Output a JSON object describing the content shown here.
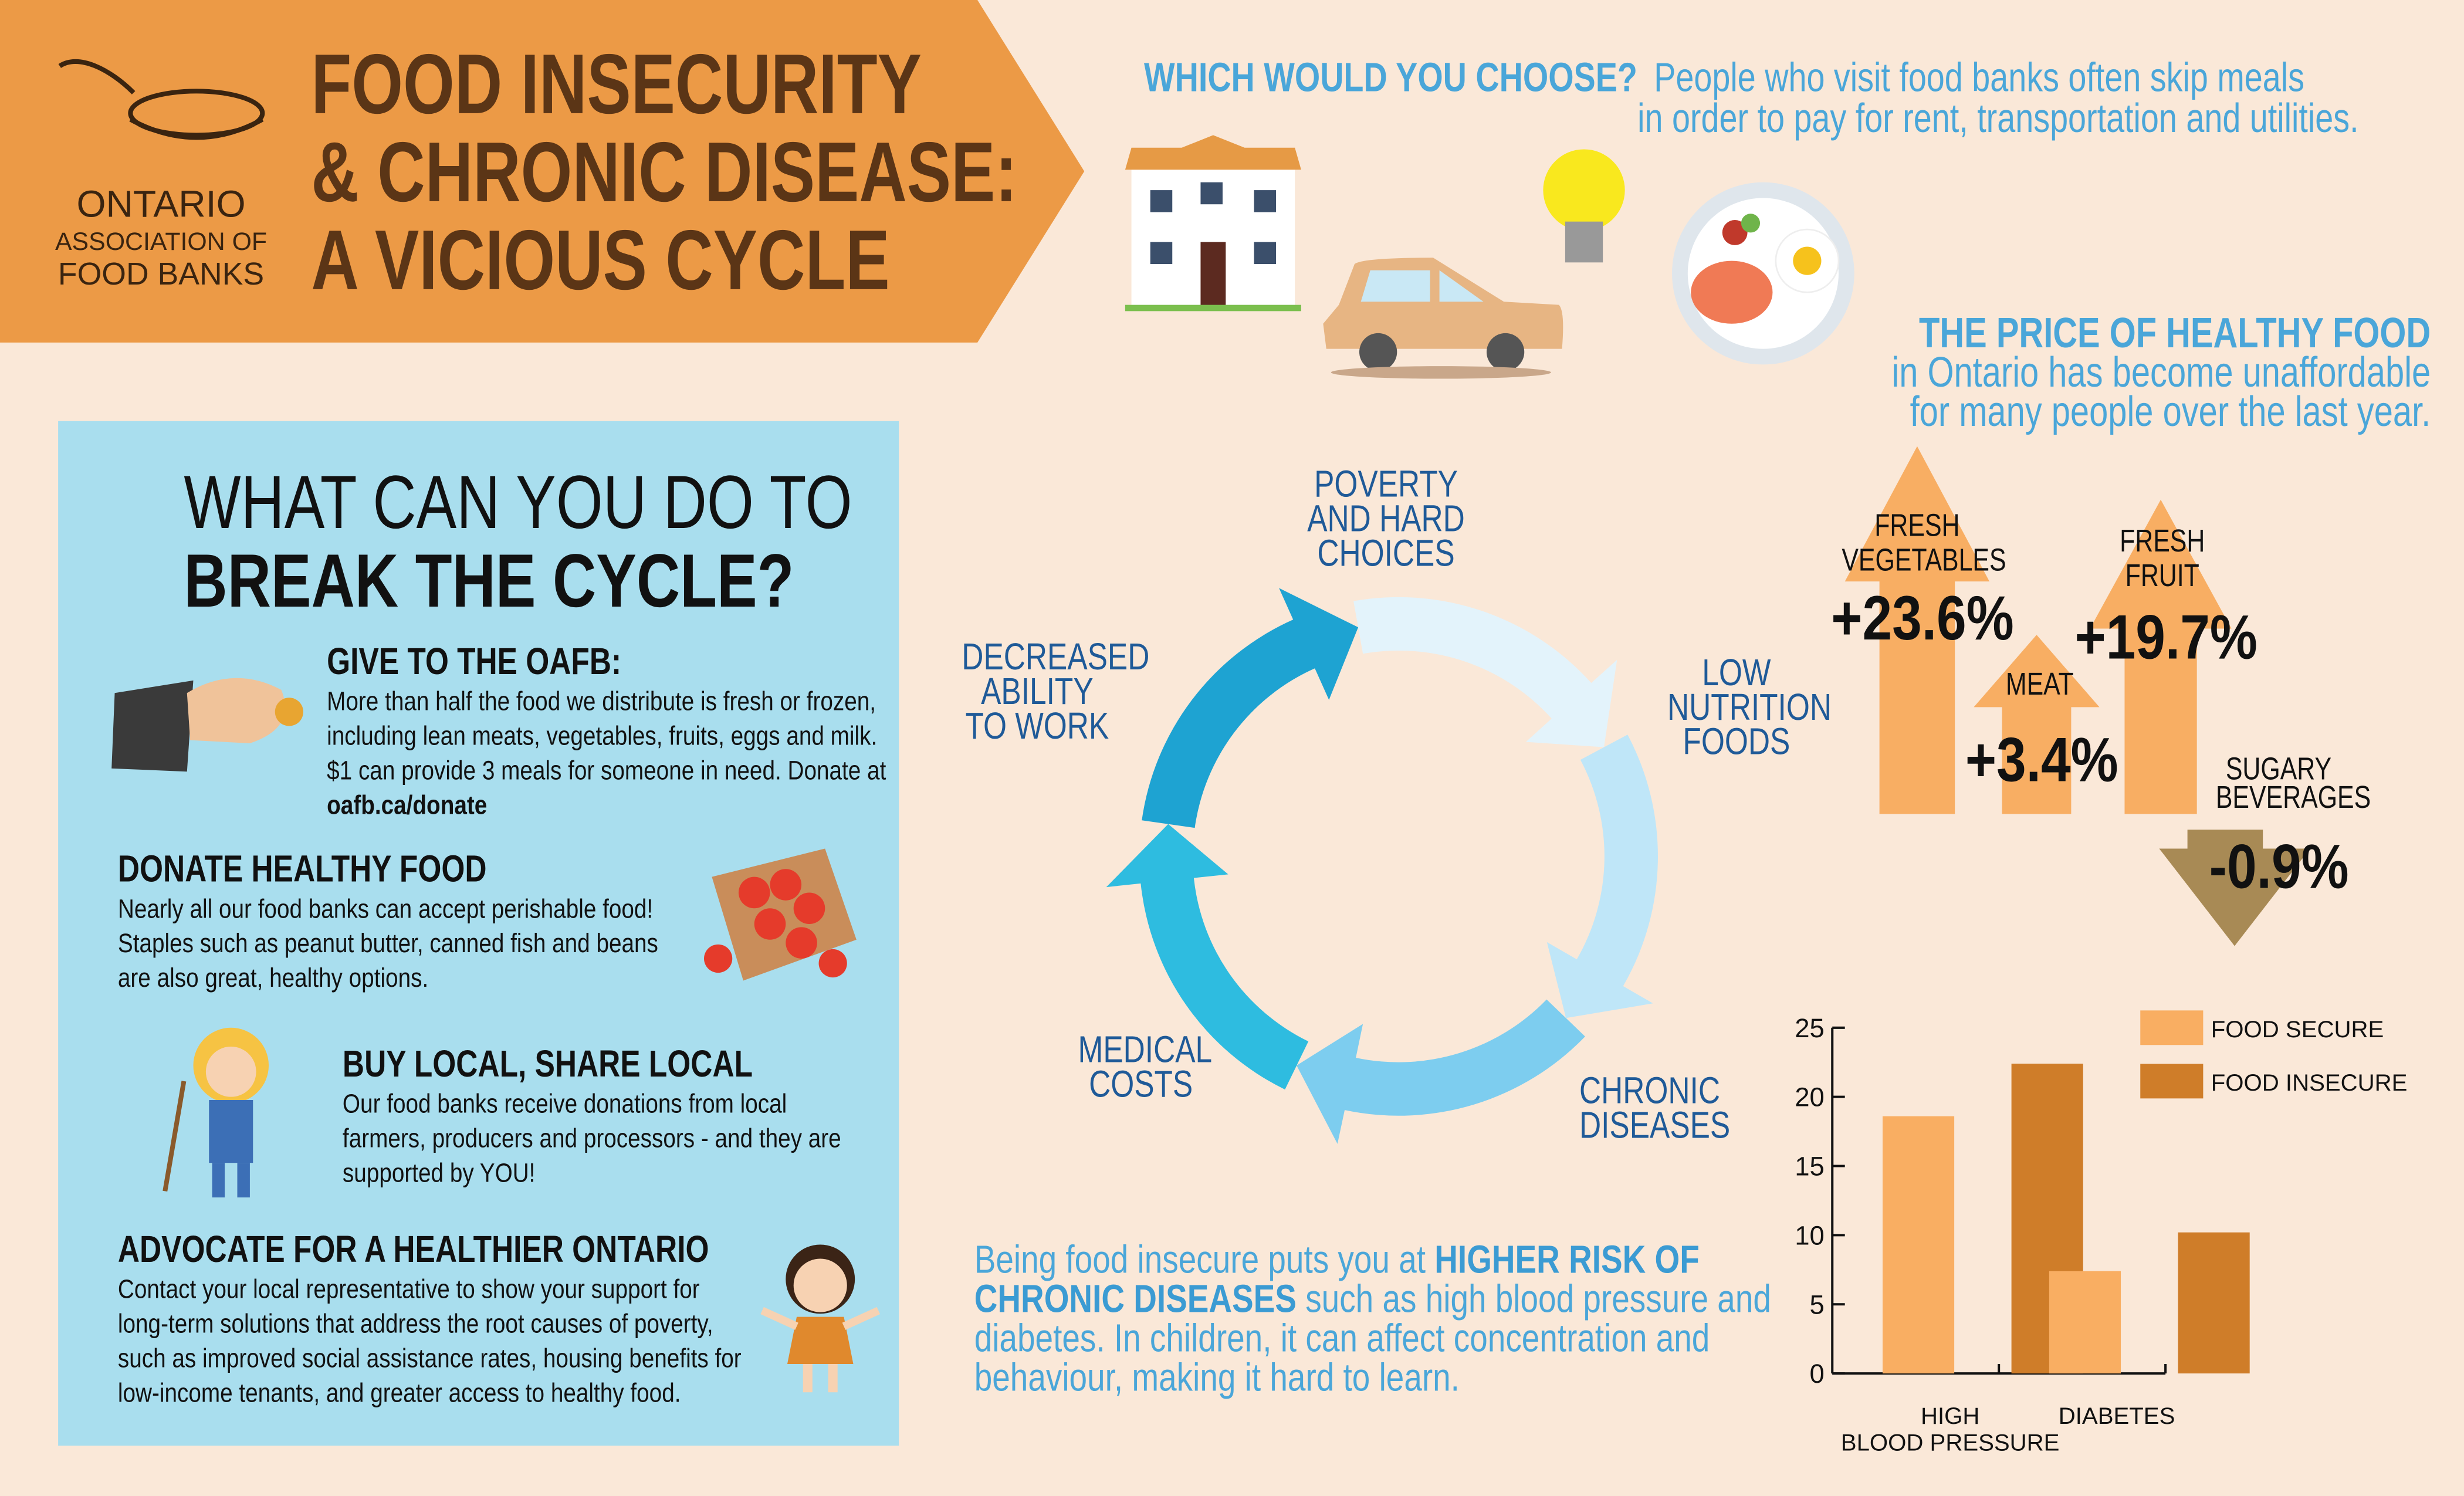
{
  "header": {
    "logo_lines": [
      "ONTARIO",
      "ASSOCIATION OF",
      "FOOD BANKS"
    ],
    "title_lines": [
      "FOOD INSECURITY",
      "& CHRONIC DISEASE:",
      "A VICIOUS CYCLE"
    ],
    "banner_color": "#ec9a46"
  },
  "choose": {
    "heading": "WHICH WOULD YOU CHOOSE?",
    "text_line1": "People who visit food banks often skip meals",
    "text_line2": "in order to pay for rent, transportation and utilities.",
    "icons": [
      "house-icon",
      "car-icon",
      "lightbulb-icon",
      "food-plate-icon"
    ]
  },
  "action_panel": {
    "title_line1": "WHAT CAN YOU DO TO",
    "title_line2": "BREAK THE CYCLE?",
    "items": [
      {
        "heading": "GIVE TO THE OAFB:",
        "text": "More than half the food we distribute is fresh or frozen, including lean meats, vegetables, fruits, eggs and milk.  $1 can provide 3 meals for someone in need. Donate at ",
        "link": "oafb.ca/donate",
        "icon": "hand-coin-icon"
      },
      {
        "heading": "DONATE HEALTHY FOOD",
        "text": "Nearly all our food banks can accept perishable food! Staples such as peanut butter, canned fish and beans are also great, healthy options.",
        "icon": "tomato-crate-icon"
      },
      {
        "heading": "BUY LOCAL, SHARE LOCAL",
        "text": "Our food banks receive donations from local farmers, producers and processors - and they are supported by YOU!",
        "icon": "farmer-icon"
      },
      {
        "heading": "ADVOCATE FOR A HEALTHIER ONTARIO",
        "text": "Contact your local representative to show your support for long-term solutions that address the root causes of poverty, such as improved social assistance rates, housing benefits for low-income tenants, and greater access to healthy food.",
        "icon": "child-icon"
      }
    ]
  },
  "cycle": {
    "stages": [
      {
        "line1": "POVERTY",
        "line2": "AND HARD CHOICES"
      },
      {
        "line1": "LOW",
        "line2": "NUTRITION",
        "line3": "FOODS"
      },
      {
        "line1": "CHRONIC",
        "line2": "DISEASES"
      },
      {
        "line1": "MEDICAL",
        "line2": "COSTS"
      },
      {
        "line1": "DECREASED",
        "line2": "ABILITY",
        "line3": "TO WORK"
      }
    ],
    "colors": [
      "#e3f3fb",
      "#bfe6f8",
      "#7dcdef",
      "#2ebce0",
      "#1ea3d2"
    ]
  },
  "risk_text": {
    "part1": "Being food insecure puts you at ",
    "bold": "HIGHER RISK OF CHRONIC DISEASES",
    "part2": " such as high blood pressure and diabetes.   In children, it can affect concentration and behaviour, making it hard to learn."
  },
  "prices": {
    "heading": "THE PRICE OF HEALTHY FOOD",
    "sub1": "in Ontario has become unaffordable",
    "sub2": "for many people over the last year.",
    "items": [
      {
        "label1": "FRESH",
        "label2": "VEGETABLES",
        "value": "+23.6%",
        "change": 23.6
      },
      {
        "label1": "MEAT",
        "value": "+3.4%",
        "change": 3.4
      },
      {
        "label1": "FRESH",
        "label2": "FRUIT",
        "value": "+19.7%",
        "change": 19.7
      },
      {
        "label1": "SUGARY",
        "label2": "BEVERAGES",
        "value": "-0.9%",
        "change": -0.9
      }
    ],
    "up_color": "#f8ae63",
    "down_color": "#a88a55"
  },
  "chart_data": {
    "type": "bar",
    "categories": [
      "HIGH\nBLOOD PRESSURE",
      "DIABETES"
    ],
    "category_lines": [
      [
        "HIGH",
        "BLOOD PRESSURE"
      ],
      [
        "DIABETES"
      ]
    ],
    "series": [
      {
        "name": "FOOD SECURE",
        "values": [
          18.6,
          7.4
        ],
        "color": "#f9ae62"
      },
      {
        "name": "FOOD INSECURE",
        "values": [
          22.4,
          10.2
        ],
        "color": "#cf7d29"
      }
    ],
    "ylim": [
      0,
      25
    ],
    "yticks": [
      "0",
      "5",
      "10",
      "15",
      "20",
      "25"
    ],
    "grid": false,
    "legend": "top-right"
  }
}
